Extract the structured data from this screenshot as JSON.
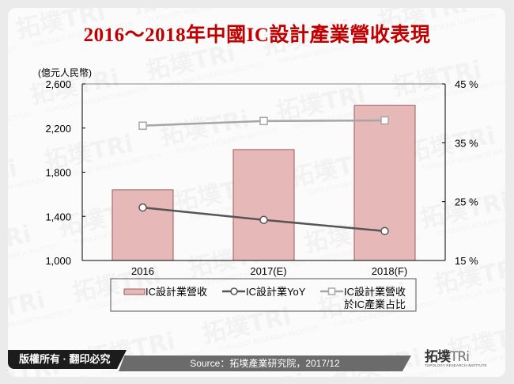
{
  "title": "2016～2018年中國IC設計產業營收表現",
  "chart_data": {
    "type": "bar",
    "title": "2016～2018年中國IC設計產業營收表現",
    "categories": [
      "2016",
      "2017(E)",
      "2018(F)"
    ],
    "left_axis": {
      "label": "(億元人民幣)",
      "ticks": [
        "2,600",
        "2,200",
        "1,800",
        "1,400",
        "1,000"
      ],
      "range": [
        1000,
        2600
      ]
    },
    "right_axis": {
      "ticks": [
        "45%",
        "35%",
        "25%",
        "15%"
      ],
      "range": [
        15,
        45
      ]
    },
    "series": [
      {
        "name": "IC設計業營收",
        "type": "bar",
        "axis": "left",
        "values": [
          1640,
          2005,
          2405
        ],
        "color": "#e6b8b8"
      },
      {
        "name": "IC設計業YoY",
        "type": "line",
        "axis": "right",
        "marker": "circle",
        "values": [
          24.0,
          21.9,
          20.0
        ],
        "color": "#555555"
      },
      {
        "name": "IC設計業營收於IC產業占比",
        "type": "line",
        "axis": "right",
        "marker": "square",
        "values": [
          37.9,
          38.7,
          38.8
        ],
        "color": "#a6a6a6"
      }
    ],
    "legend": {
      "position": "bottom",
      "items": [
        {
          "label": "IC設計業營收"
        },
        {
          "label": "IC設計業YoY"
        },
        {
          "label_line1": "IC設計業營收",
          "label_line2": "於IC產業占比"
        }
      ]
    },
    "grid": false
  },
  "footer": {
    "copyright": "版權所有 · 翻印必究",
    "source": "Source：拓墣產業研究院，2017/12",
    "logo_main": "拓墣",
    "logo_tri": "TRi",
    "logo_sub": "TOPOLOGY RESEARCH INSTITUTE"
  }
}
